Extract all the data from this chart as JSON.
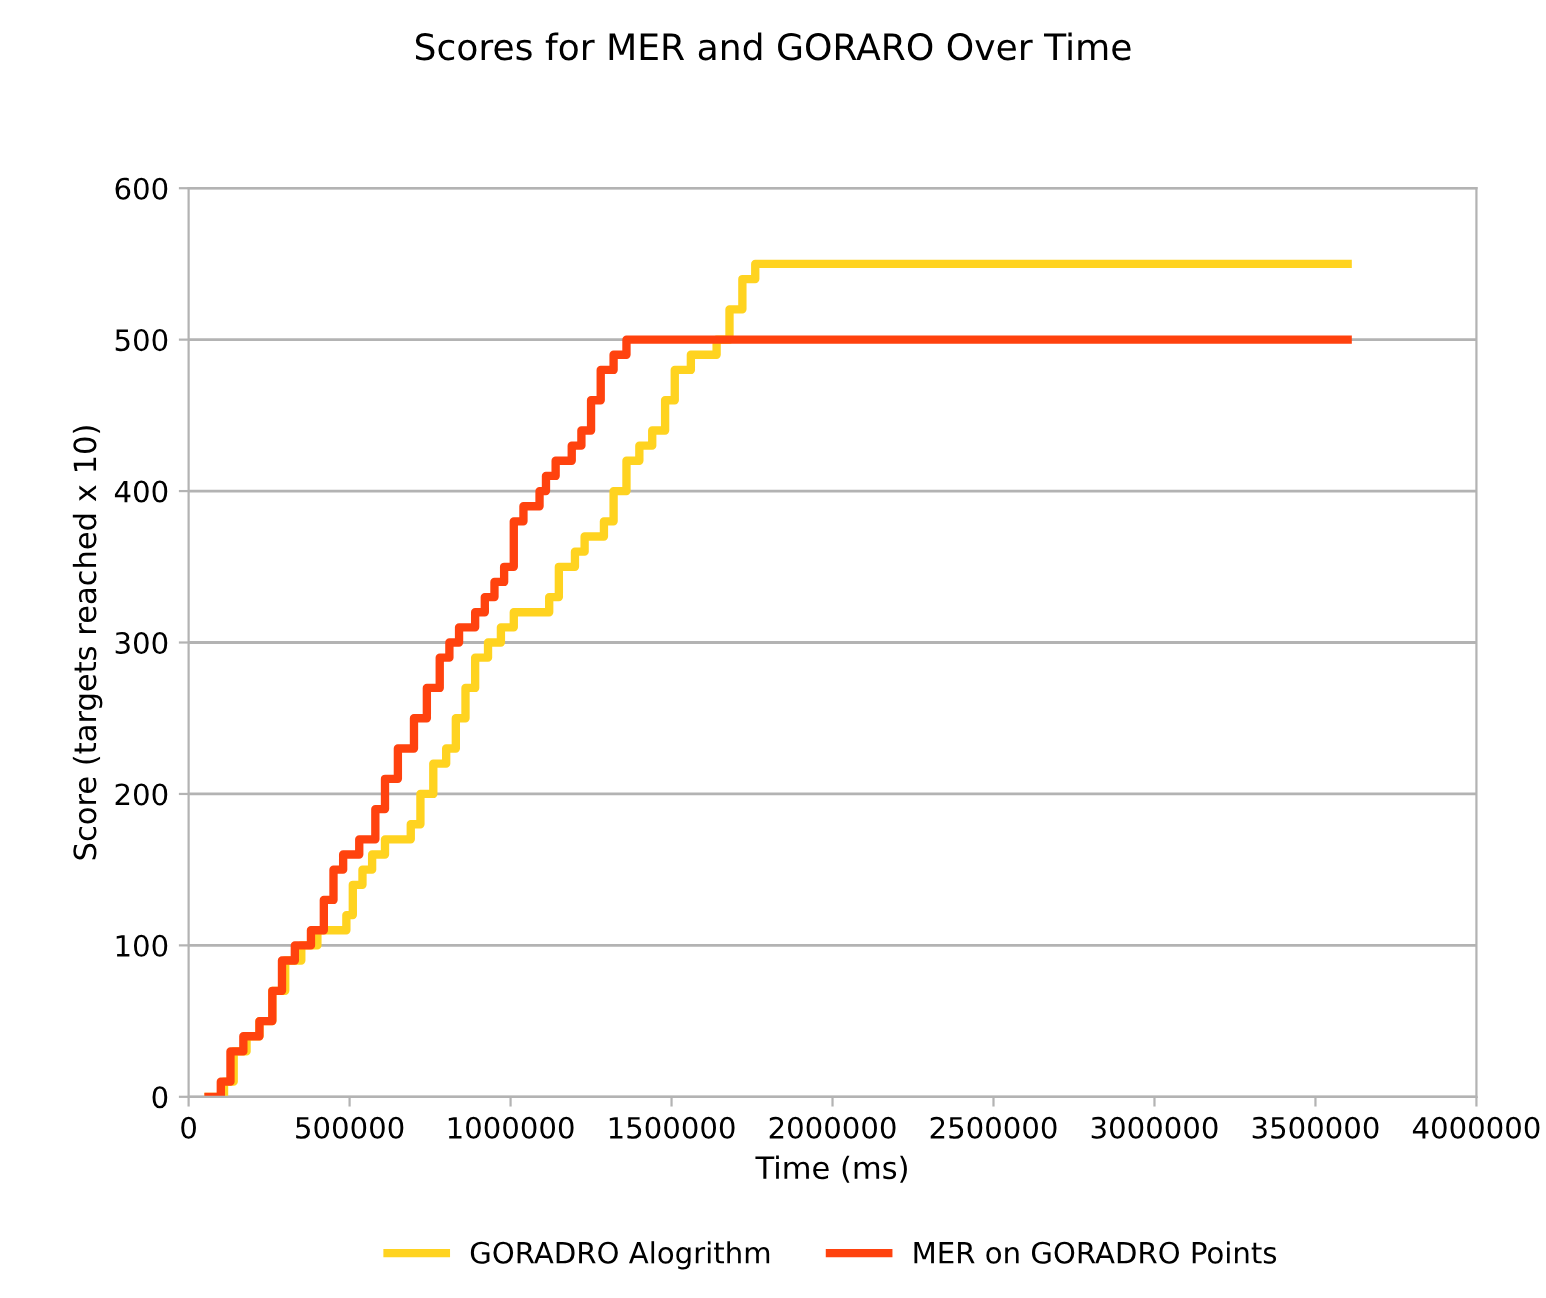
{
  "chart_data": {
    "type": "step",
    "title": "Scores for MER and GORARO Over Time",
    "xlabel": "Time (ms)",
    "ylabel": "Score (targets reached x 10)",
    "xlim": [
      0,
      4000000
    ],
    "xticks": [
      0,
      500000,
      1000000,
      1500000,
      2000000,
      2500000,
      3000000,
      3500000,
      4000000
    ],
    "ylim": [
      0,
      600
    ],
    "yticks": [
      0,
      100,
      200,
      300,
      400,
      500,
      600
    ],
    "grid": "y",
    "legend": "bottom",
    "marker": "none",
    "line_style": "solid",
    "series": [
      {
        "name": "GORADRO Alogrithm",
        "color": "#ffd320",
        "x": [
          62000,
          110000,
          140000,
          180000,
          220000,
          260000,
          300000,
          350000,
          400000,
          490000,
          510000,
          540000,
          570000,
          610000,
          690000,
          720000,
          760000,
          800000,
          830000,
          860000,
          890000,
          930000,
          970000,
          1010000,
          1120000,
          1150000,
          1200000,
          1230000,
          1290000,
          1320000,
          1360000,
          1400000,
          1440000,
          1480000,
          1510000,
          1560000,
          1640000,
          1680000,
          1720000,
          1760000,
          3600000
        ],
        "values": [
          0,
          10,
          30,
          40,
          50,
          70,
          90,
          100,
          110,
          120,
          140,
          150,
          160,
          170,
          180,
          200,
          220,
          230,
          250,
          270,
          290,
          300,
          310,
          320,
          330,
          350,
          360,
          370,
          380,
          400,
          420,
          430,
          440,
          460,
          480,
          490,
          500,
          520,
          540,
          550,
          550
        ]
      },
      {
        "name": "MER on GORADRO Points",
        "color": "#ff420e",
        "x": [
          62000,
          100000,
          130000,
          170000,
          220000,
          260000,
          290000,
          330000,
          380000,
          420000,
          450000,
          480000,
          530000,
          580000,
          610000,
          650000,
          700000,
          740000,
          780000,
          810000,
          840000,
          890000,
          920000,
          950000,
          980000,
          1010000,
          1040000,
          1090000,
          1110000,
          1140000,
          1190000,
          1220000,
          1250000,
          1280000,
          1320000,
          1360000,
          3600000
        ],
        "values": [
          0,
          10,
          30,
          40,
          50,
          70,
          90,
          100,
          110,
          130,
          150,
          160,
          170,
          190,
          210,
          230,
          250,
          270,
          290,
          300,
          310,
          320,
          330,
          340,
          350,
          380,
          390,
          400,
          410,
          420,
          430,
          440,
          460,
          480,
          490,
          500,
          500
        ]
      }
    ]
  }
}
